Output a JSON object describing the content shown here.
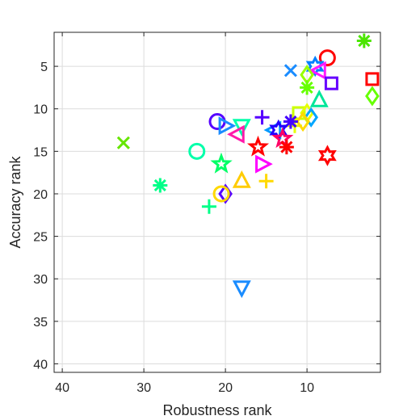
{
  "chart_data": {
    "type": "scatter",
    "title": "",
    "xlabel": "Robustness rank",
    "ylabel": "Accuracy rank",
    "xlim": [
      41,
      1
    ],
    "ylim": [
      41,
      1
    ],
    "x_reversed": true,
    "y_reversed": true,
    "xticks": [
      40,
      30,
      20,
      10
    ],
    "yticks": [
      5,
      10,
      15,
      20,
      25,
      30,
      35,
      40
    ],
    "grid": true,
    "legend": "none",
    "points": [
      {
        "x": 3,
        "y": 2,
        "marker": "asterisk",
        "color": "#4ce600"
      },
      {
        "x": 7.5,
        "y": 4,
        "marker": "circle",
        "color": "#ff0000"
      },
      {
        "x": 12,
        "y": 5.5,
        "marker": "x",
        "color": "#1a8cff"
      },
      {
        "x": 9,
        "y": 5,
        "marker": "star6",
        "color": "#0080ff"
      },
      {
        "x": 8.5,
        "y": 5.5,
        "marker": "tri-left",
        "color": "#ff1aff"
      },
      {
        "x": 10,
        "y": 6,
        "marker": "diamond",
        "color": "#99ff00"
      },
      {
        "x": 10,
        "y": 7.5,
        "marker": "asterisk",
        "color": "#66ff00"
      },
      {
        "x": 7,
        "y": 7,
        "marker": "square",
        "color": "#6600ff"
      },
      {
        "x": 2,
        "y": 6.5,
        "marker": "square",
        "color": "#ff0000"
      },
      {
        "x": 2,
        "y": 8.5,
        "marker": "diamond",
        "color": "#66ff00"
      },
      {
        "x": 8.5,
        "y": 9,
        "marker": "tri-up",
        "color": "#00e699"
      },
      {
        "x": 11,
        "y": 10.5,
        "marker": "square",
        "color": "#ccff00"
      },
      {
        "x": 10,
        "y": 10.5,
        "marker": "diamond",
        "color": "#e6ff00"
      },
      {
        "x": 9.5,
        "y": 11,
        "marker": "diamond",
        "color": "#00a6ff"
      },
      {
        "x": 11.5,
        "y": 12,
        "marker": "plus",
        "color": "#e6ff00"
      },
      {
        "x": 10.5,
        "y": 11.5,
        "marker": "diamond",
        "color": "#ffd900"
      },
      {
        "x": 12,
        "y": 11.5,
        "marker": "asterisk",
        "color": "#4400ff"
      },
      {
        "x": 15.5,
        "y": 11,
        "marker": "plus",
        "color": "#5500ff"
      },
      {
        "x": 14,
        "y": 12.5,
        "marker": "tri-left",
        "color": "#0099ff"
      },
      {
        "x": 13.5,
        "y": 12.5,
        "marker": "star6",
        "color": "#2200ff"
      },
      {
        "x": 13,
        "y": 13.5,
        "marker": "star5",
        "color": "#ff0066"
      },
      {
        "x": 12.5,
        "y": 14.5,
        "marker": "asterisk",
        "color": "#ff0000"
      },
      {
        "x": 16,
        "y": 14.5,
        "marker": "star5",
        "color": "#ff0000"
      },
      {
        "x": 7.5,
        "y": 15.5,
        "marker": "star6",
        "color": "#ff0000"
      },
      {
        "x": 21,
        "y": 11.5,
        "marker": "circle",
        "color": "#5500ff"
      },
      {
        "x": 20,
        "y": 12,
        "marker": "tri-right",
        "color": "#1a8cff"
      },
      {
        "x": 18,
        "y": 12,
        "marker": "tri-down",
        "color": "#00ffaa"
      },
      {
        "x": 18.5,
        "y": 13,
        "marker": "tri-left",
        "color": "#ff1aaa"
      },
      {
        "x": 32.5,
        "y": 14,
        "marker": "x",
        "color": "#66e600"
      },
      {
        "x": 23.5,
        "y": 15,
        "marker": "circle",
        "color": "#00ffaa"
      },
      {
        "x": 20.5,
        "y": 16.5,
        "marker": "star5",
        "color": "#00ff66"
      },
      {
        "x": 15.5,
        "y": 16.5,
        "marker": "tri-right",
        "color": "#ff00ff"
      },
      {
        "x": 18,
        "y": 18.5,
        "marker": "tri-up",
        "color": "#ffcc00"
      },
      {
        "x": 15,
        "y": 18.5,
        "marker": "plus",
        "color": "#ffd900"
      },
      {
        "x": 28,
        "y": 19,
        "marker": "asterisk",
        "color": "#00ff88"
      },
      {
        "x": 20,
        "y": 20,
        "marker": "diamond",
        "color": "#5500ff"
      },
      {
        "x": 20.5,
        "y": 20,
        "marker": "circle",
        "color": "#ffd900"
      },
      {
        "x": 22,
        "y": 21.5,
        "marker": "plus",
        "color": "#00ff88"
      },
      {
        "x": 18,
        "y": 31,
        "marker": "tri-down",
        "color": "#1a8cff"
      }
    ]
  }
}
